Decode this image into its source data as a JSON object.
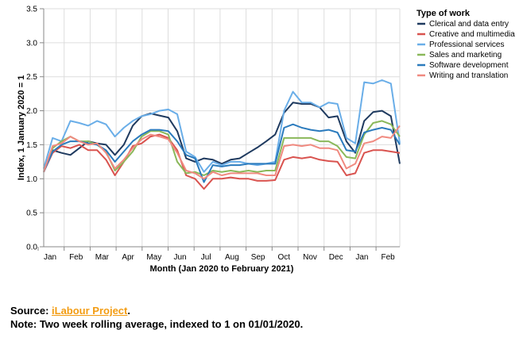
{
  "chart_data": {
    "type": "line",
    "xlabel": "Month (Jan 2020 to February 2021)",
    "ylabel": "Index, 1 January 2020 = 1",
    "ylim": [
      0,
      3.5
    ],
    "yticks": [
      "0.0",
      "0.5",
      "1.0",
      "1.5",
      "2.0",
      "2.5",
      "3.0",
      "3.5"
    ],
    "xticks": [
      "Jan",
      "Feb",
      "Mar",
      "Apr",
      "May",
      "Jun",
      "Jul",
      "Aug",
      "Sep",
      "Oct",
      "Nov",
      "Dec",
      "Jan",
      "Feb"
    ],
    "grid": true,
    "legend_title": "Type of work",
    "legend_position": "right",
    "series": [
      {
        "name": "Clerical and data entry",
        "color": "#1f3a5f",
        "values": [
          1.1,
          1.42,
          1.38,
          1.35,
          1.45,
          1.55,
          1.52,
          1.5,
          1.35,
          1.5,
          1.78,
          1.92,
          1.96,
          1.93,
          1.9,
          1.7,
          1.3,
          1.25,
          1.3,
          1.28,
          1.22,
          1.28,
          1.3,
          1.38,
          1.46,
          1.55,
          1.65,
          1.97,
          2.12,
          2.1,
          2.1,
          2.05,
          1.9,
          1.92,
          1.55,
          1.38,
          1.85,
          1.98,
          2.0,
          1.92,
          1.22
        ]
      },
      {
        "name": "Creative and multimedia",
        "color": "#d9534f",
        "values": [
          1.1,
          1.38,
          1.48,
          1.45,
          1.5,
          1.42,
          1.42,
          1.28,
          1.05,
          1.25,
          1.48,
          1.52,
          1.62,
          1.65,
          1.6,
          1.42,
          1.05,
          1.0,
          0.85,
          1.0,
          1.0,
          1.02,
          1.0,
          1.0,
          0.97,
          0.97,
          0.98,
          1.28,
          1.32,
          1.3,
          1.32,
          1.28,
          1.26,
          1.25,
          1.05,
          1.08,
          1.38,
          1.42,
          1.42,
          1.4,
          1.38
        ]
      },
      {
        "name": "Professional services",
        "color": "#6aaee8",
        "values": [
          1.15,
          1.6,
          1.55,
          1.85,
          1.82,
          1.78,
          1.85,
          1.8,
          1.62,
          1.75,
          1.85,
          1.92,
          1.95,
          2.0,
          2.02,
          1.95,
          1.4,
          1.32,
          1.1,
          1.25,
          1.2,
          1.25,
          1.25,
          1.22,
          1.2,
          1.22,
          1.25,
          2.0,
          2.28,
          2.12,
          2.12,
          2.05,
          2.12,
          2.1,
          1.6,
          1.52,
          2.42,
          2.4,
          2.45,
          2.4,
          1.52
        ]
      },
      {
        "name": "Sales and marketing",
        "color": "#8ab85a",
        "values": [
          1.1,
          1.45,
          1.55,
          1.62,
          1.55,
          1.55,
          1.5,
          1.4,
          1.12,
          1.25,
          1.4,
          1.62,
          1.7,
          1.7,
          1.65,
          1.25,
          1.08,
          1.1,
          1.05,
          1.12,
          1.1,
          1.12,
          1.1,
          1.12,
          1.1,
          1.12,
          1.12,
          1.6,
          1.6,
          1.6,
          1.6,
          1.55,
          1.55,
          1.48,
          1.32,
          1.3,
          1.65,
          1.82,
          1.85,
          1.8,
          1.62
        ]
      },
      {
        "name": "Software development",
        "color": "#2b7bbd",
        "values": [
          1.1,
          1.4,
          1.5,
          1.55,
          1.55,
          1.52,
          1.5,
          1.42,
          1.25,
          1.4,
          1.55,
          1.65,
          1.72,
          1.72,
          1.7,
          1.55,
          1.35,
          1.3,
          0.95,
          1.2,
          1.18,
          1.2,
          1.2,
          1.22,
          1.22,
          1.22,
          1.22,
          1.75,
          1.8,
          1.75,
          1.72,
          1.7,
          1.72,
          1.68,
          1.42,
          1.4,
          1.68,
          1.72,
          1.75,
          1.72,
          1.5
        ]
      },
      {
        "name": "Writing and translation",
        "color": "#f08a80",
        "values": [
          1.1,
          1.48,
          1.52,
          1.62,
          1.55,
          1.5,
          1.52,
          1.38,
          1.15,
          1.28,
          1.45,
          1.58,
          1.65,
          1.62,
          1.58,
          1.38,
          1.12,
          1.08,
          1.0,
          1.1,
          1.05,
          1.08,
          1.08,
          1.08,
          1.08,
          1.05,
          1.05,
          1.48,
          1.5,
          1.48,
          1.5,
          1.45,
          1.45,
          1.42,
          1.15,
          1.22,
          1.52,
          1.55,
          1.62,
          1.6,
          1.78
        ]
      }
    ]
  },
  "footer": {
    "source_prefix": "Source: ",
    "source_link": "iLabour Project",
    "source_suffix": ".",
    "note": "Note: Two week rolling average, indexed to 1 on 01/01/2020."
  }
}
